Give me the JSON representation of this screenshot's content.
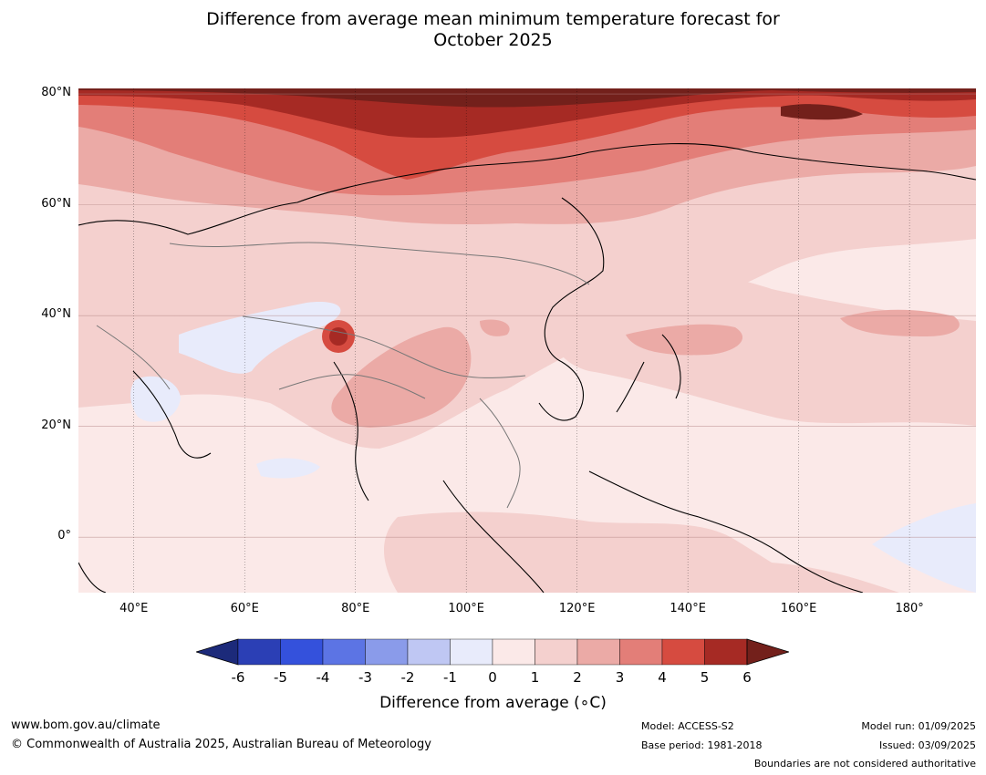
{
  "title": {
    "line1": "Difference from average mean minimum temperature forecast for",
    "line2": "October 2025"
  },
  "map": {
    "lat_labels": [
      "80°N",
      "60°N",
      "40°N",
      "20°N",
      "0°"
    ],
    "lon_labels": [
      "40°E",
      "60°E",
      "80°E",
      "100°E",
      "120°E",
      "140°E",
      "160°E",
      "180°"
    ],
    "lat_values": [
      80,
      60,
      40,
      20,
      0
    ],
    "lon_values": [
      40,
      60,
      80,
      100,
      120,
      140,
      160,
      180
    ],
    "lon_range": [
      30,
      192
    ],
    "lat_range": [
      -10,
      81
    ]
  },
  "colorbar": {
    "title": "Difference from average (∘C)",
    "ticks": [
      "-6",
      "-5",
      "-4",
      "-3",
      "-2",
      "-1",
      "0",
      "1",
      "2",
      "3",
      "4",
      "5",
      "6"
    ],
    "colors": [
      "#1c2a7a",
      "#2b3fb5",
      "#3451dc",
      "#5c74e4",
      "#8a9bea",
      "#bfc7f3",
      "#e8ebfb",
      "#fbe9e8",
      "#f4d0ce",
      "#ebaaa6",
      "#e37e78",
      "#d64b40",
      "#a62a24",
      "#73201b"
    ]
  },
  "footer": {
    "website": "www.bom.gov.au/climate",
    "copyright": "© Commonwealth of Australia 2025, Australian Bureau of Meteorology",
    "model": "Model: ACCESS-S2",
    "base_period": "Base period: 1981-2018",
    "model_run": "Model run: 01/09/2025",
    "issued": "Issued: 03/09/2025",
    "boundaries": "Boundaries are not considered authoritative"
  }
}
